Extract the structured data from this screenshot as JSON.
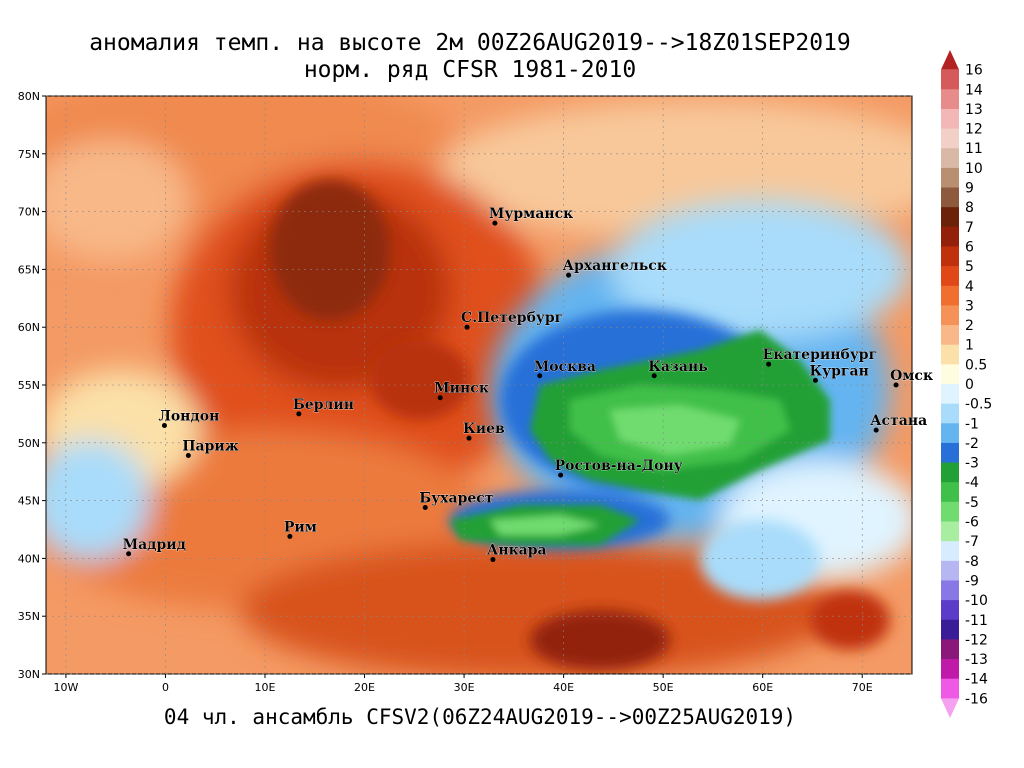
{
  "title": {
    "line1": "аномалия темп. на высоте 2м 00Z26AUG2019-->18Z01SEP2019",
    "line2": "норм. ряд CFSR 1981-2010"
  },
  "footer": "04 чл. ансамбль CFSV2(06Z24AUG2019-->00Z25AUG2019)",
  "map": {
    "lat_labels": [
      "80N",
      "75N",
      "70N",
      "65N",
      "60N",
      "55N",
      "50N",
      "45N",
      "40N",
      "35N",
      "30N"
    ],
    "lon_labels": [
      "10W",
      "0",
      "10E",
      "20E",
      "30E",
      "40E",
      "50E",
      "60E",
      "70E"
    ],
    "lat_values": [
      80,
      75,
      70,
      65,
      60,
      55,
      50,
      45,
      40,
      35,
      30
    ],
    "lon_values": [
      -10,
      0,
      10,
      20,
      30,
      40,
      50,
      60,
      70
    ],
    "extent": {
      "lon_min": -12,
      "lon_max": 75,
      "lat_min": 30,
      "lat_max": 80
    }
  },
  "cities": [
    {
      "name": "Мурманск",
      "lon": 33.1,
      "lat": 69.0
    },
    {
      "name": "Архангельск",
      "lon": 40.5,
      "lat": 64.5
    },
    {
      "name": "С.Петербург",
      "lon": 30.3,
      "lat": 60.0
    },
    {
      "name": "Москва",
      "lon": 37.6,
      "lat": 55.8
    },
    {
      "name": "Казань",
      "lon": 49.1,
      "lat": 55.8
    },
    {
      "name": "Екатеринбург",
      "lon": 60.6,
      "lat": 56.8
    },
    {
      "name": "Курган",
      "lon": 65.3,
      "lat": 55.4
    },
    {
      "name": "Омск",
      "lon": 73.4,
      "lat": 55.0
    },
    {
      "name": "Астана",
      "lon": 71.4,
      "lat": 51.1
    },
    {
      "name": "Минск",
      "lon": 27.6,
      "lat": 53.9
    },
    {
      "name": "Берлин",
      "lon": 13.4,
      "lat": 52.5
    },
    {
      "name": "Лондон",
      "lon": -0.1,
      "lat": 51.5
    },
    {
      "name": "Париж",
      "lon": 2.3,
      "lat": 48.9
    },
    {
      "name": "Киев",
      "lon": 30.5,
      "lat": 50.4
    },
    {
      "name": "Ростов-на-Дону",
      "lon": 39.7,
      "lat": 47.2
    },
    {
      "name": "Бухарест",
      "lon": 26.1,
      "lat": 44.4
    },
    {
      "name": "Рим",
      "lon": 12.5,
      "lat": 41.9
    },
    {
      "name": "Мадрид",
      "lon": -3.7,
      "lat": 40.4
    },
    {
      "name": "Анкара",
      "lon": 32.9,
      "lat": 39.9
    }
  ],
  "colorbar": {
    "levels": [
      "16",
      "14",
      "13",
      "12",
      "11",
      "10",
      "9",
      "8",
      "7",
      "6",
      "5",
      "4",
      "3",
      "2",
      "1",
      "0.5",
      "0",
      "-0.5",
      "-1",
      "-2",
      "-3",
      "-4",
      "-5",
      "-6",
      "-7",
      "-8",
      "-9",
      "-10",
      "-11",
      "-12",
      "-13",
      "-14",
      "-16"
    ],
    "colors": [
      "#b22222",
      "#d65a5a",
      "#e88b8b",
      "#f3b7b7",
      "#f2d0c8",
      "#d9b9a6",
      "#b98f72",
      "#8d5a3e",
      "#6b2208",
      "#932008",
      "#c0300c",
      "#e04818",
      "#ef6e30",
      "#f49258",
      "#f8b888",
      "#fbe0a8",
      "#fffde0",
      "#e0f4ff",
      "#a8dcfa",
      "#64b4f0",
      "#2870d8",
      "#22a036",
      "#40c048",
      "#70dc70",
      "#a8eea0",
      "#d8ecff",
      "#b6b6f2",
      "#8878e6",
      "#5a3cc8",
      "#3a1c96",
      "#8a187a",
      "#c01aa8",
      "#ee5ae6",
      "#f6a0f0"
    ]
  }
}
